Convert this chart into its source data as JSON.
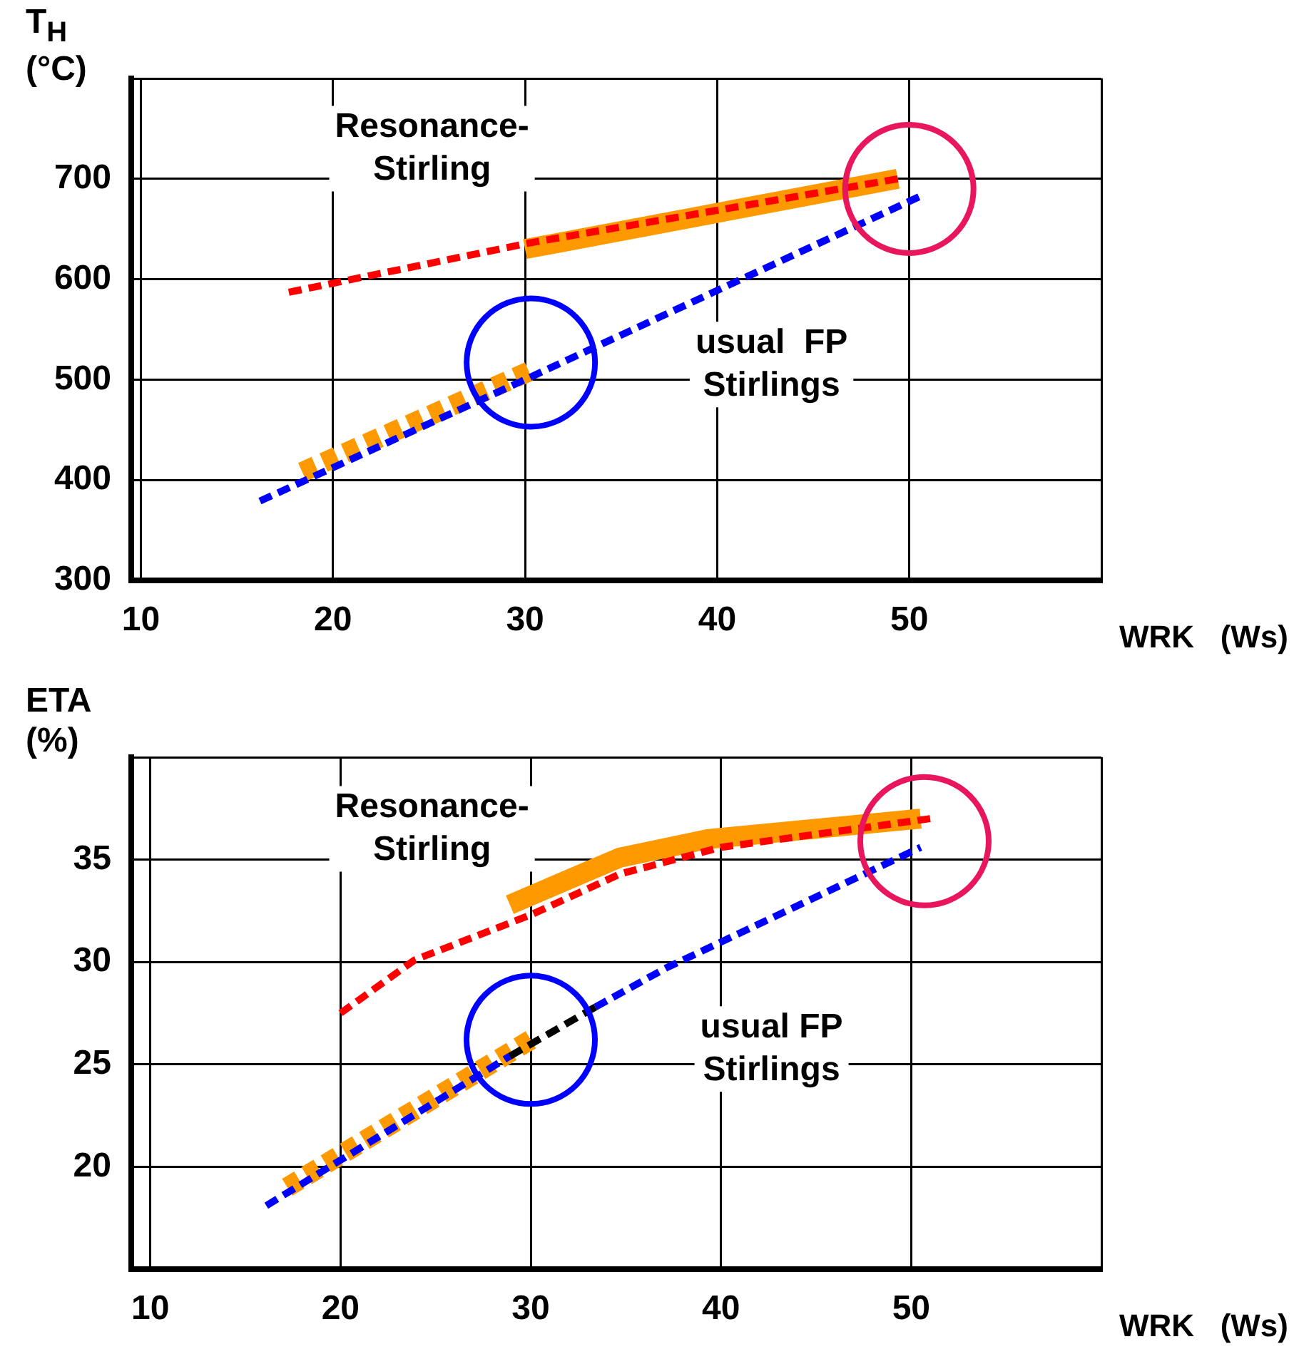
{
  "chart_data": [
    {
      "type": "line",
      "ylabel": "T$_{H}$\n(°C)",
      "xlabel": "WRK   (Ws)",
      "xlim": [
        9.5,
        60
      ],
      "xticks": [
        10,
        20,
        30,
        40,
        50,
        {
          "value": 60,
          "label": null
        }
      ],
      "ylim": [
        300,
        800
      ],
      "yticks": [
        300,
        400,
        500,
        600,
        700,
        {
          "value": 800,
          "label": null
        }
      ],
      "grid": true,
      "legend": false,
      "marker": "none",
      "series": [
        {
          "type": "line",
          "color": "#ff9900",
          "line_style": "solid",
          "x": [
            30,
            49.4
          ],
          "values": [
            630,
            700
          ]
        },
        {
          "type": "line",
          "color": "#ff9900",
          "line_style": "dashed",
          "x": [
            18.4,
            30.2
          ],
          "values": [
            408,
            508
          ]
        },
        {
          "type": "line",
          "color": "#ff0000",
          "line_style": "dashed",
          "x": [
            17.7,
            30.2,
            49.4
          ],
          "values": [
            587,
            636,
            700
          ]
        },
        {
          "type": "line",
          "color": "#0000ff",
          "line_style": "dashed",
          "x": [
            16.2,
            30,
            50.5
          ],
          "values": [
            379,
            500,
            682
          ]
        },
        {
          "type": "scatter",
          "color": "#e8175d",
          "marker": "circle",
          "x": [
            50
          ],
          "values": [
            690
          ]
        },
        {
          "type": "scatter",
          "color": "#0000ff",
          "marker": "circle",
          "x": [
            30.3
          ],
          "values": [
            517
          ]
        }
      ],
      "annotations": [
        "Resonance-\nStirling",
        "usual  FP\nStirlings"
      ]
    },
    {
      "type": "line",
      "ylabel": "ETA\n(%)",
      "xlabel": "WRK   (Ws)",
      "xlim": [
        9,
        60
      ],
      "xticks": [
        10,
        20,
        30,
        40,
        50,
        {
          "value": 60,
          "label": null
        }
      ],
      "ylim": [
        15,
        40
      ],
      "yticks": [
        20,
        25,
        30,
        35,
        {
          "value": 40,
          "label": null
        }
      ],
      "grid": true,
      "legend": false,
      "marker": "none",
      "series": [
        {
          "type": "line",
          "color": "#ff9900",
          "line_style": "solid",
          "x": [
            28.9,
            34.7,
            39.3,
            50.5
          ],
          "values": [
            32.8,
            35.1,
            36,
            37
          ]
        },
        {
          "type": "line",
          "color": "#ff9900",
          "line_style": "dashed",
          "x": [
            17.2,
            30
          ],
          "values": [
            19,
            26.2
          ]
        },
        {
          "type": "line",
          "color": "#ff0000",
          "line_style": "dashed",
          "x": [
            20,
            23.9,
            30,
            34.7,
            40,
            51
          ],
          "values": [
            27.5,
            30.1,
            32.3,
            34.3,
            35.6,
            37
          ]
        },
        {
          "type": "line",
          "color": "#0000ff",
          "line_style": "dashed",
          "x": [
            16.1,
            28.9,
            31,
            33.4,
            37.1,
            50.5
          ],
          "values": [
            18.1,
            25.4,
            null,
            27.8,
            29.7,
            35.6
          ]
        },
        {
          "type": "line",
          "color": "#000000",
          "line_style": "dashed",
          "x": [
            28.9,
            33.4
          ],
          "values": [
            25.4,
            27.8
          ]
        },
        {
          "type": "scatter",
          "color": "#e8175d",
          "marker": "circle",
          "x": [
            50.7
          ],
          "values": [
            35.9
          ]
        },
        {
          "type": "scatter",
          "color": "#0000ff",
          "marker": "circle",
          "x": [
            30
          ],
          "values": [
            26.2
          ]
        }
      ],
      "annotations": [
        "Resonance-\nStirling",
        "usual FP\nStirlings"
      ]
    }
  ]
}
